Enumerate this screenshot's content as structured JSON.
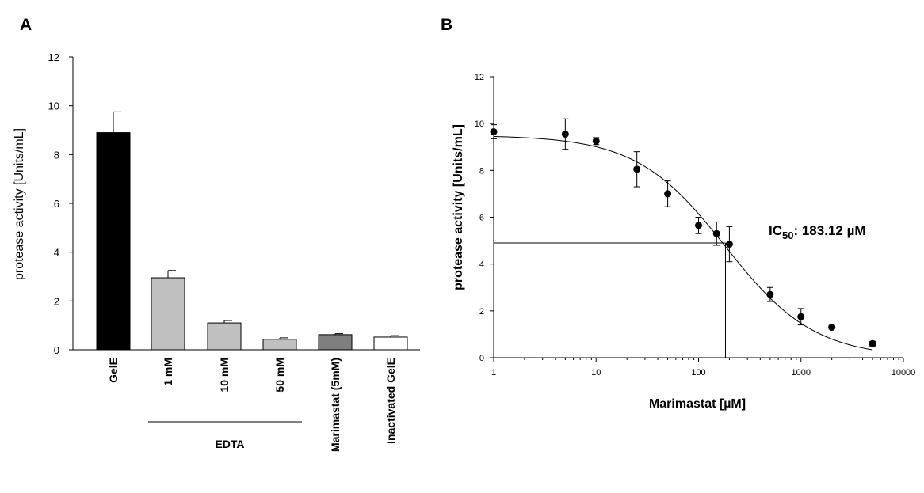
{
  "panels": {
    "a_label": "A",
    "b_label": "B"
  },
  "chart_data": [
    {
      "type": "bar",
      "categories": [
        "GelE",
        "1 mM",
        "10 mM",
        "50 mM",
        "Marimastat (5mM)",
        "Inactivated GelE"
      ],
      "values": [
        8.9,
        2.95,
        1.1,
        0.43,
        0.62,
        0.52
      ],
      "errors": [
        0.85,
        0.3,
        0.1,
        0.06,
        0.04,
        0.06
      ],
      "bar_colors": [
        "#000000",
        "#c0c0c0",
        "#c0c0c0",
        "#c0c0c0",
        "#7f7f7f",
        "#ffffff"
      ],
      "group_label": "EDTA",
      "group_members": [
        "1 mM",
        "10 mM",
        "50 mM"
      ],
      "ylabel": "protease activity [Units/mL]",
      "ylim": [
        0,
        12
      ],
      "yticks": [
        "0",
        "2",
        "4",
        "6",
        "8",
        "10",
        "12"
      ],
      "grid": false,
      "legend": "none"
    },
    {
      "type": "scatter",
      "x": [
        1,
        5,
        10,
        25,
        50,
        100,
        150,
        200,
        500,
        1000,
        2000,
        5000
      ],
      "y": [
        9.65,
        9.55,
        9.25,
        8.05,
        7.0,
        5.65,
        5.3,
        4.85,
        2.7,
        1.75,
        1.3,
        0.6
      ],
      "errors": [
        0.3,
        0.65,
        0.15,
        0.75,
        0.55,
        0.35,
        0.5,
        0.75,
        0.3,
        0.35,
        0.08,
        0.1
      ],
      "fit": {
        "model": "four-parameter logistic",
        "top": 9.5,
        "bottom": 0,
        "ic50": 183.12,
        "hill": 1
      },
      "reference_line": {
        "x": 183.12,
        "y": 4.9
      },
      "annotation": {
        "prefix": "IC",
        "subscript": "50",
        "suffix": ": 183.12 µM"
      },
      "xlabel": "Marimastat [µM]",
      "ylabel": "protease activity [Units/mL]",
      "xscale": "log",
      "xlim": [
        1,
        10000
      ],
      "ylim": [
        0,
        12
      ],
      "xticks": [
        "1",
        "10",
        "100",
        "1000",
        "10000"
      ],
      "yticks": [
        "0",
        "2",
        "4",
        "6",
        "8",
        "10",
        "12"
      ],
      "grid": false,
      "legend": "none"
    }
  ]
}
